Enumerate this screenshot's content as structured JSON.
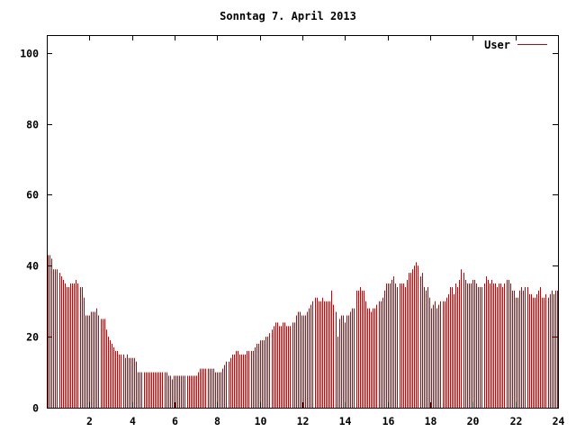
{
  "chart_data": {
    "type": "bar",
    "title": "Sonntag 7. April 2013",
    "xlabel": "",
    "ylabel": "",
    "xlim": [
      0,
      24
    ],
    "ylim": [
      0,
      105
    ],
    "x_ticks": [
      2,
      4,
      6,
      8,
      10,
      12,
      14,
      16,
      18,
      20,
      22,
      24
    ],
    "y_ticks": [
      0,
      20,
      40,
      60,
      80,
      100
    ],
    "grid": false,
    "legend_position": "top-right",
    "series": [
      {
        "name": "User",
        "color": "#cc0000",
        "values": [
          43,
          43,
          42,
          39,
          39,
          39,
          38,
          37,
          36,
          35,
          34,
          34,
          35,
          35,
          35,
          36,
          35,
          34,
          34,
          31,
          26,
          26,
          26,
          27,
          27,
          27,
          28,
          26,
          25,
          25,
          25,
          22,
          20,
          19,
          18,
          17,
          16,
          16,
          15,
          15,
          15,
          14,
          15,
          14,
          14,
          14,
          14,
          13,
          10,
          10,
          10,
          10,
          10,
          10,
          10,
          10,
          10,
          10,
          10,
          10,
          10,
          10,
          10,
          10,
          9,
          9,
          8,
          9,
          9,
          9,
          9,
          9,
          9,
          9,
          9,
          9,
          9,
          9,
          9,
          9,
          10,
          11,
          11,
          11,
          11,
          11,
          11,
          11,
          11,
          10,
          10,
          10,
          10,
          11,
          12,
          13,
          13,
          14,
          15,
          15,
          16,
          16,
          15,
          15,
          15,
          15,
          16,
          16,
          16,
          16,
          17,
          18,
          18,
          19,
          19,
          19,
          20,
          20,
          21,
          22,
          23,
          24,
          24,
          23,
          23,
          24,
          24,
          23,
          23,
          23,
          24,
          24,
          26,
          27,
          27,
          26,
          26,
          26,
          27,
          28,
          29,
          30,
          31,
          31,
          30,
          30,
          31,
          30,
          30,
          30,
          30,
          33,
          29,
          27,
          20,
          25,
          26,
          26,
          24,
          26,
          26,
          27,
          28,
          28,
          33,
          33,
          34,
          33,
          33,
          30,
          28,
          28,
          27,
          28,
          28,
          29,
          30,
          30,
          31,
          33,
          35,
          35,
          35,
          36,
          37,
          35,
          34,
          35,
          35,
          35,
          34,
          36,
          38,
          38,
          39,
          40,
          41,
          40,
          37,
          38,
          34,
          33,
          34,
          31,
          28,
          29,
          30,
          28,
          29,
          30,
          30,
          30,
          31,
          32,
          34,
          34,
          32,
          35,
          34,
          36,
          39,
          38,
          36,
          35,
          35,
          35,
          36,
          36,
          35,
          34,
          34,
          34,
          35,
          37,
          36,
          35,
          36,
          35,
          35,
          34,
          35,
          35,
          34,
          35,
          36,
          36,
          35,
          33,
          33,
          31,
          31,
          33,
          34,
          33,
          34,
          34,
          32,
          32,
          31,
          31,
          32,
          33,
          34,
          31,
          31,
          32,
          31,
          32,
          33,
          32,
          33,
          33
        ]
      }
    ]
  }
}
